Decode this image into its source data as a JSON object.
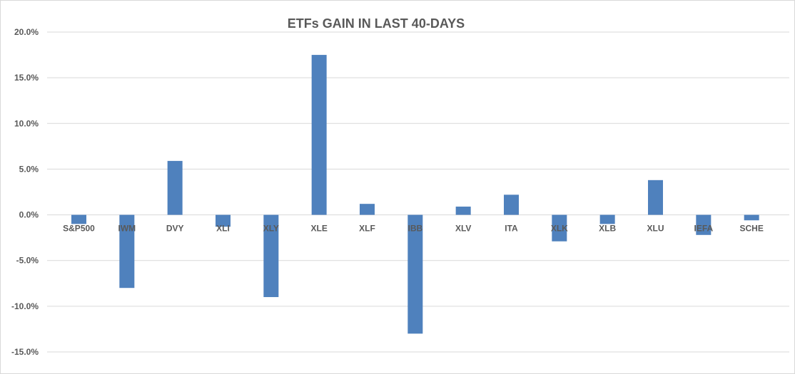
{
  "chart_data": {
    "type": "bar",
    "title": "ETFs GAIN IN LAST 40-DAYS",
    "xlabel": "",
    "ylabel": "",
    "ylim": [
      -0.15,
      0.2
    ],
    "yticks": [
      "20.0%",
      "15.0%",
      "10.0%",
      "5.0%",
      "0.0%",
      "-5.0%",
      "-10.0%",
      "-15.0%"
    ],
    "ytick_values": [
      0.2,
      0.15,
      0.1,
      0.05,
      0.0,
      -0.05,
      -0.1,
      -0.15
    ],
    "grid": true,
    "bar_color": "#4f81bd",
    "categories": [
      "S&P500",
      "IWM",
      "DVY",
      "XLI",
      "XLY",
      "XLE",
      "XLF",
      "IBB",
      "XLV",
      "ITA",
      "XLK",
      "XLB",
      "XLU",
      "IEFA",
      "SCHE"
    ],
    "values": [
      -0.01,
      -0.08,
      0.059,
      -0.013,
      -0.09,
      0.175,
      0.012,
      -0.13,
      0.009,
      0.022,
      -0.029,
      -0.01,
      0.038,
      -0.022,
      -0.006
    ]
  }
}
